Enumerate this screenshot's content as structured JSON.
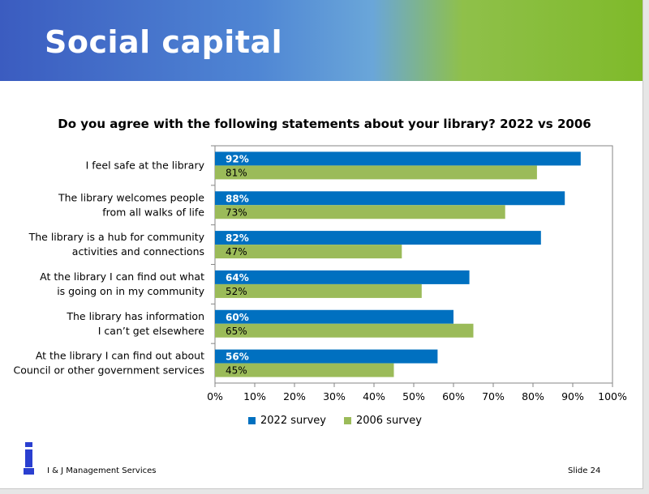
{
  "slide": {
    "title": "Social capital",
    "footer_left": "I & J Management Services",
    "footer_right": "Slide  24",
    "colors": {
      "banner_left": "#3b5cc0",
      "banner_right": "#7fba2a"
    }
  },
  "chart_data": {
    "type": "bar",
    "orientation": "horizontal",
    "title": "Do you agree with the following statements about your library? 2022 vs 2006",
    "categories": [
      "I feel safe at the library",
      "The library welcomes people from all walks of life",
      "The library is a hub for community activities and connections",
      "At the library I can find out what is going on in my community",
      "The library has information I can't get elsewhere",
      "At the library I can find out about Council or other government services"
    ],
    "category_lines": [
      [
        "I feel safe at the library"
      ],
      [
        "The library welcomes people",
        "from all walks of life"
      ],
      [
        "The library is a hub for community",
        "activities and connections"
      ],
      [
        "At the library I can find out what",
        "is going on in my community"
      ],
      [
        "The library has information",
        "I can’t get elsewhere"
      ],
      [
        "At the library I can find out about",
        "Council or other government services"
      ]
    ],
    "series": [
      {
        "name": "2022 survey",
        "color": "#0070c0",
        "label_color": "#ffffff",
        "values": [
          92,
          88,
          82,
          64,
          60,
          56
        ],
        "labels": [
          "92%",
          "88%",
          "82%",
          "64%",
          "60%",
          "56%"
        ]
      },
      {
        "name": "2006 survey",
        "color": "#9bbb59",
        "label_color": "#000000",
        "values": [
          81,
          73,
          47,
          52,
          65,
          45
        ],
        "labels": [
          "81%",
          "73%",
          "47%",
          "52%",
          "65%",
          "45%"
        ]
      }
    ],
    "xlim": [
      0,
      100
    ],
    "xticks": [
      "0%",
      "10%",
      "20%",
      "30%",
      "40%",
      "50%",
      "60%",
      "70%",
      "80%",
      "90%",
      "100%"
    ],
    "grid": false,
    "legend_position": "bottom"
  }
}
